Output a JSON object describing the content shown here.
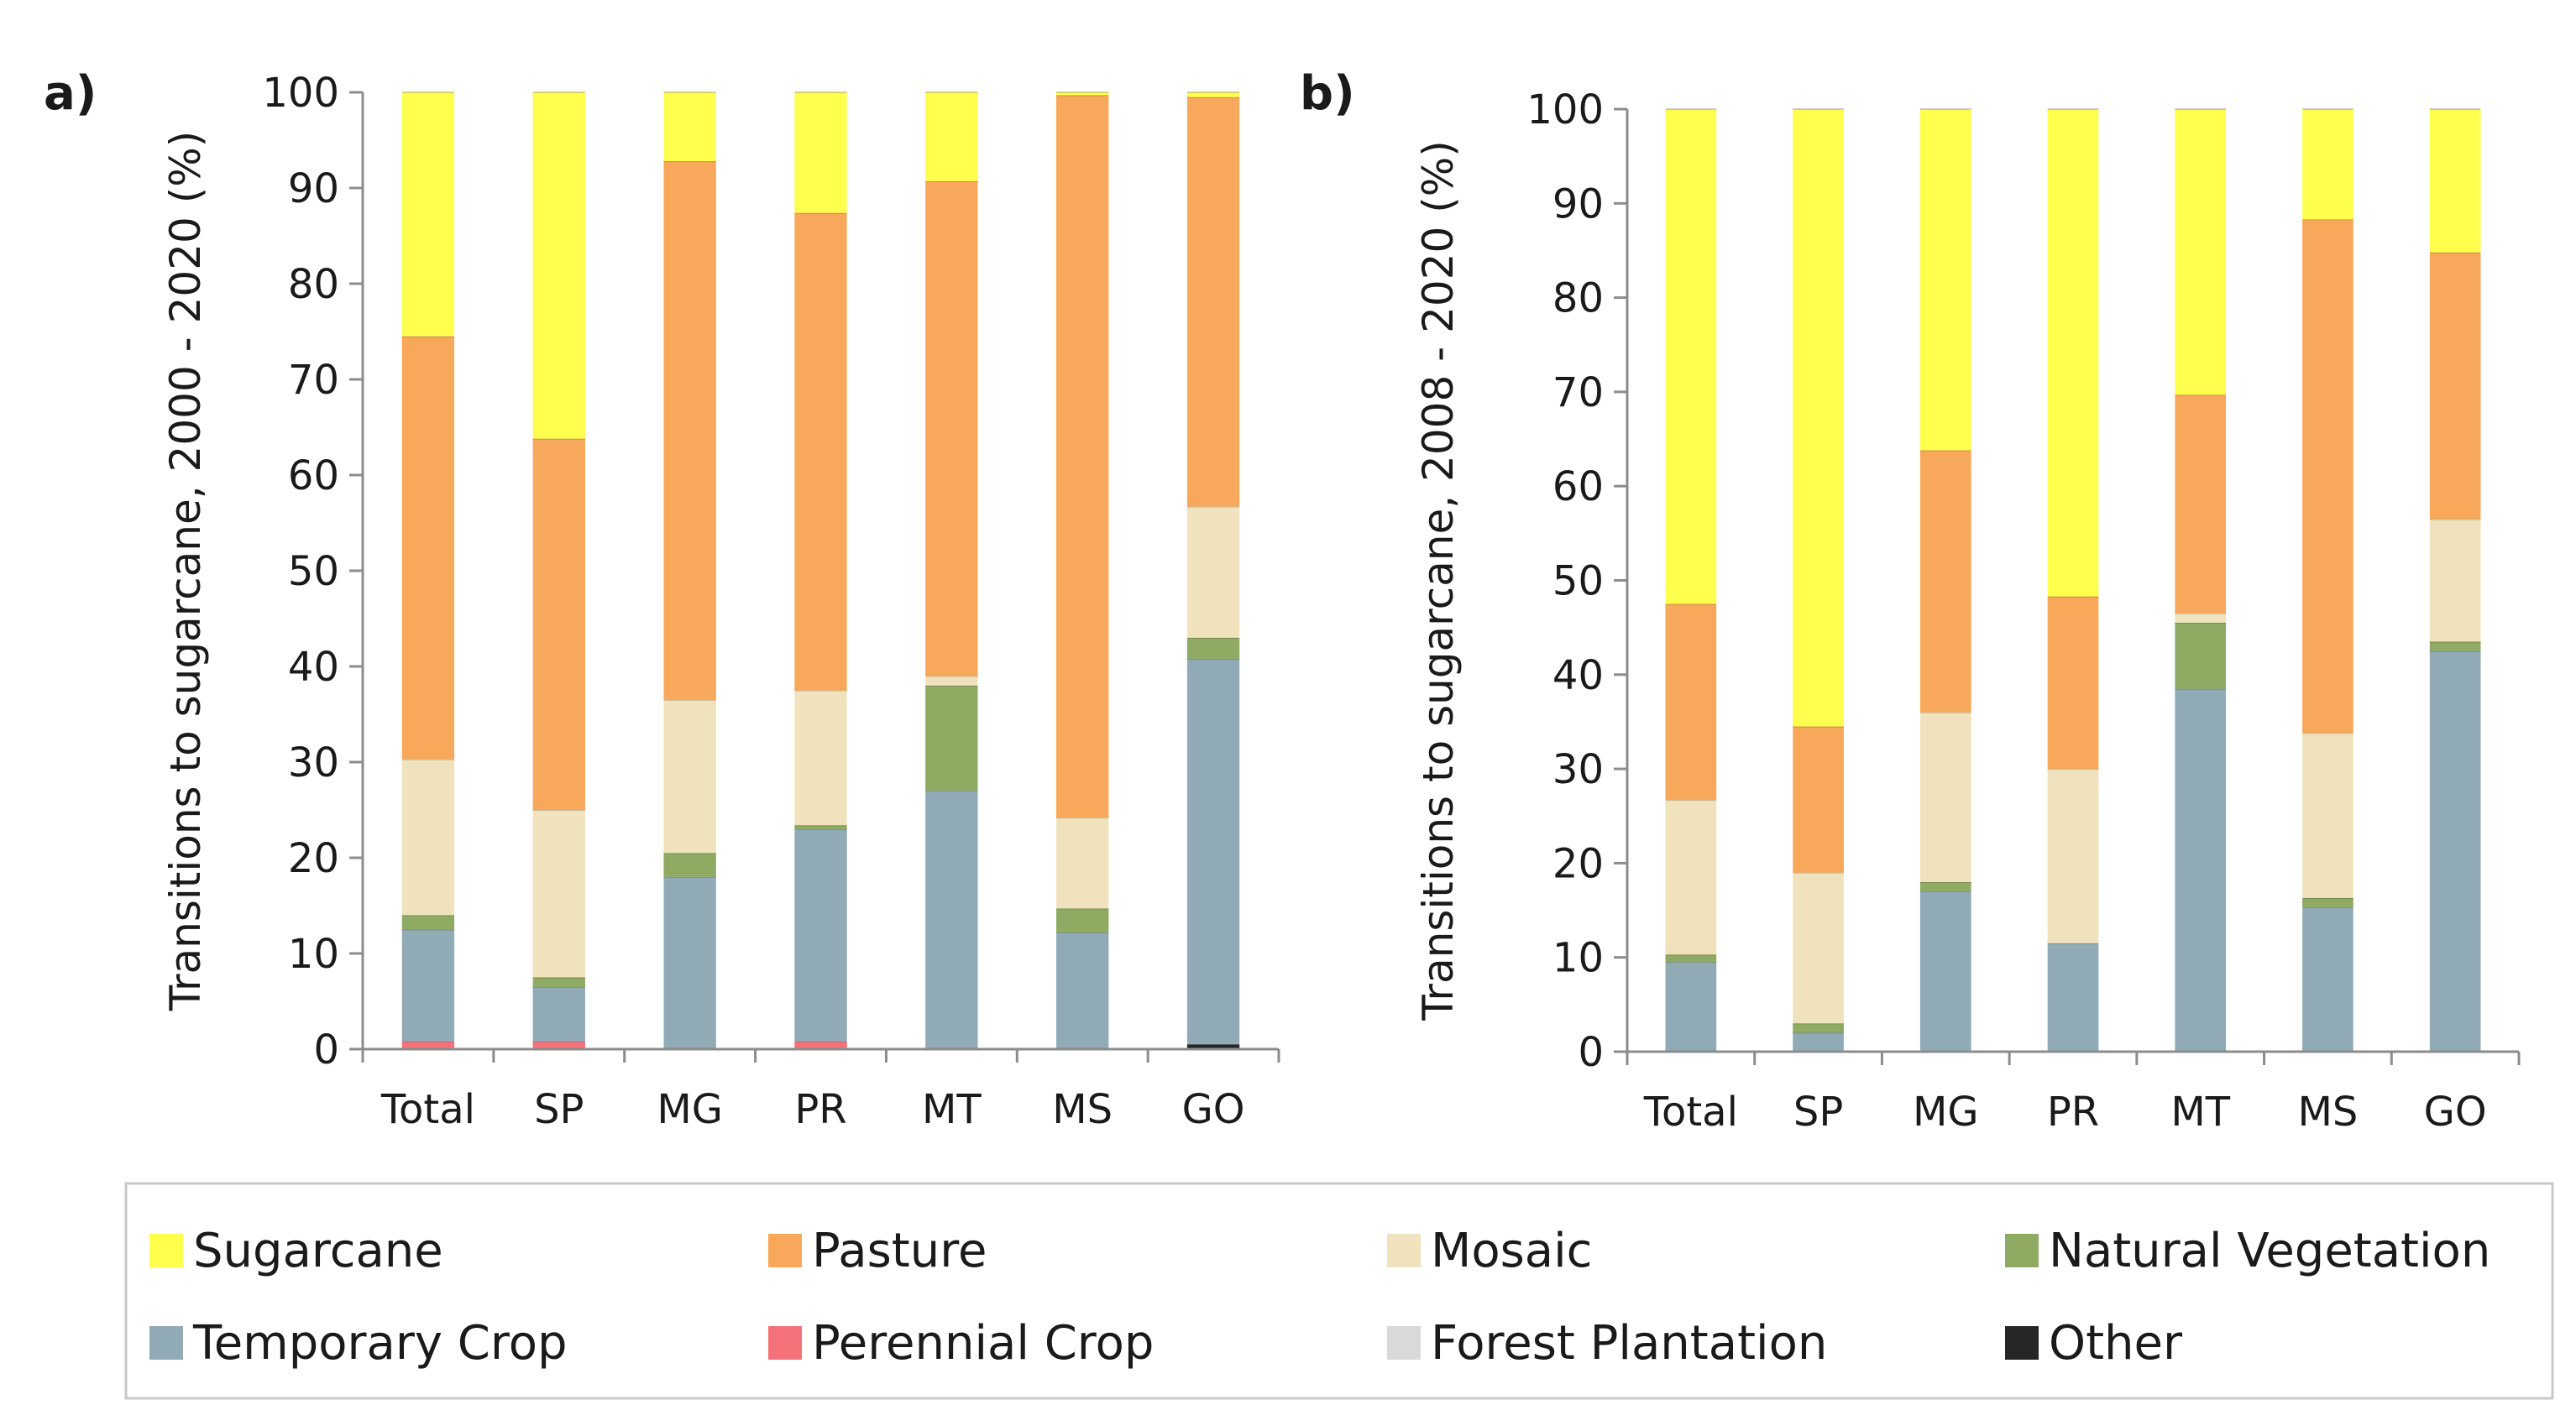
{
  "chart_data": [
    {
      "type": "bar",
      "stacked": true,
      "panel_label": "a)",
      "ylabel": "Transitions to sugarcane, 2000 - 2020 (%)",
      "xlabel": "",
      "ylim": [
        0,
        100
      ],
      "yticks": [
        "0",
        "10",
        "20",
        "30",
        "40",
        "50",
        "60",
        "70",
        "80",
        "90",
        "100"
      ],
      "categories": [
        "Total",
        "SP",
        "MG",
        "PR",
        "MT",
        "MS",
        "GO"
      ],
      "series": [
        {
          "name": "Other",
          "values": [
            0,
            0,
            0,
            0,
            0,
            0,
            0.5
          ]
        },
        {
          "name": "Perennial Crop",
          "values": [
            0.8,
            0.8,
            0,
            0.8,
            0,
            0,
            0
          ]
        },
        {
          "name": "Forest Plantation",
          "values": [
            0,
            0,
            0,
            0,
            0,
            0,
            0
          ]
        },
        {
          "name": "Temporary Crop",
          "values": [
            11.7,
            5.7,
            18,
            22.2,
            27,
            12.2,
            40.3
          ]
        },
        {
          "name": "Natural Vegetation",
          "values": [
            1.5,
            1,
            2.5,
            0.4,
            11,
            2.5,
            2.2
          ]
        },
        {
          "name": "Mosaic",
          "values": [
            16.3,
            17.5,
            16,
            14.1,
            1,
            9.5,
            13.7
          ]
        },
        {
          "name": "Pasture",
          "values": [
            44.2,
            38.8,
            56.3,
            49.9,
            51.7,
            75.5,
            42.8
          ]
        },
        {
          "name": "Sugarcane",
          "values": [
            25.5,
            36.2,
            7.2,
            12.6,
            9.3,
            0.3,
            0.5
          ]
        }
      ]
    },
    {
      "type": "bar",
      "stacked": true,
      "panel_label": "b)",
      "ylabel": "Transitions to sugarcane, 2008 - 2020 (%)",
      "xlabel": "",
      "ylim": [
        0,
        100
      ],
      "yticks": [
        "0",
        "10",
        "20",
        "30",
        "40",
        "50",
        "60",
        "70",
        "80",
        "90",
        "100"
      ],
      "categories": [
        "Total",
        "SP",
        "MG",
        "PR",
        "MT",
        "MS",
        "GO"
      ],
      "series": [
        {
          "name": "Other",
          "values": [
            0,
            0,
            0,
            0,
            0,
            0,
            0
          ]
        },
        {
          "name": "Perennial Crop",
          "values": [
            0,
            0,
            0,
            0,
            0,
            0,
            0
          ]
        },
        {
          "name": "Forest Plantation",
          "values": [
            0,
            0,
            0,
            0,
            0,
            0,
            0
          ]
        },
        {
          "name": "Temporary Crop",
          "values": [
            9.5,
            2,
            17,
            11.5,
            38.5,
            15.3,
            42.5
          ]
        },
        {
          "name": "Natural Vegetation",
          "values": [
            0.8,
            1,
            1,
            0,
            7,
            1,
            1
          ]
        },
        {
          "name": "Mosaic",
          "values": [
            16.4,
            16,
            18,
            18.5,
            1,
            17.5,
            13
          ]
        },
        {
          "name": "Pasture",
          "values": [
            20.8,
            15.5,
            27.8,
            18.3,
            23.2,
            54.5,
            28.3
          ]
        },
        {
          "name": "Sugarcane",
          "values": [
            52.5,
            65.5,
            36.2,
            51.7,
            30.3,
            11.7,
            15.2
          ]
        }
      ]
    }
  ],
  "legend": {
    "items": [
      {
        "name": "Sugarcane",
        "color": "#ffff4d"
      },
      {
        "name": "Pasture",
        "color": "#f8a85a"
      },
      {
        "name": "Mosaic",
        "color": "#f0e2bc"
      },
      {
        "name": "Natural Vegetation",
        "color": "#8eaa63"
      },
      {
        "name": "Temporary Crop",
        "color": "#91abb6"
      },
      {
        "name": "Perennial Crop",
        "color": "#f4737a"
      },
      {
        "name": "Forest Plantation",
        "color": "#d9d9d9"
      },
      {
        "name": "Other",
        "color": "#262626"
      }
    ]
  }
}
